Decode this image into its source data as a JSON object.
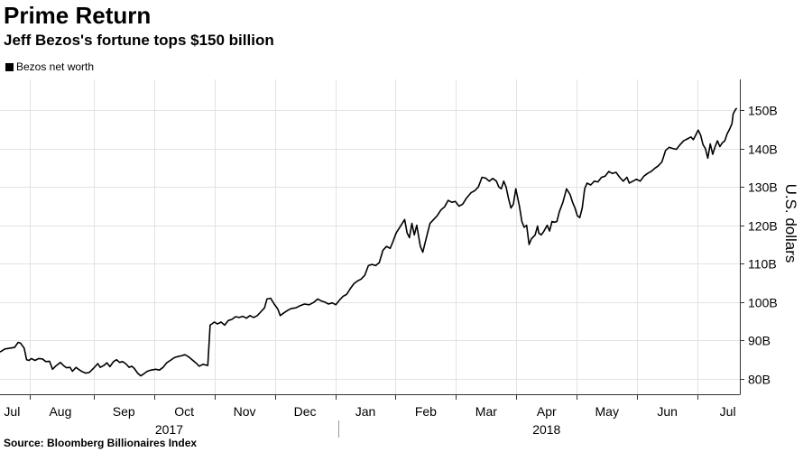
{
  "header": {
    "title": "Prime Return",
    "subtitle": "Jeff Bezos's fortune tops $150 billion"
  },
  "legend": {
    "label": "Bezos net worth",
    "swatch_color": "#000000"
  },
  "source": "Source: Bloomberg Billionaires Index",
  "chart_data": {
    "type": "line",
    "title": "Prime Return",
    "subtitle": "Jeff Bezos's fortune tops $150 billion",
    "xlabel": "",
    "ylabel": "U.S. dollars",
    "ylim": [
      76,
      158
    ],
    "xlim": [
      0,
      12.25
    ],
    "grid": true,
    "legend_position": "top-left",
    "y_ticks": [
      {
        "value": 80,
        "label": "80B"
      },
      {
        "value": 90,
        "label": "90B"
      },
      {
        "value": 100,
        "label": "100B"
      },
      {
        "value": 110,
        "label": "110B"
      },
      {
        "value": 120,
        "label": "120B"
      },
      {
        "value": 130,
        "label": "130B"
      },
      {
        "value": 140,
        "label": "140B"
      },
      {
        "value": 150,
        "label": "150B"
      }
    ],
    "month_ticks": [
      {
        "label": "Jul",
        "x": 0.2
      },
      {
        "label": "Aug",
        "x": 1.0
      },
      {
        "label": "Sep",
        "x": 2.05
      },
      {
        "label": "Oct",
        "x": 3.05
      },
      {
        "label": "Nov",
        "x": 4.05
      },
      {
        "label": "Dec",
        "x": 5.05
      },
      {
        "label": "Jan",
        "x": 6.05
      },
      {
        "label": "Feb",
        "x": 7.05
      },
      {
        "label": "Mar",
        "x": 8.05
      },
      {
        "label": "Apr",
        "x": 9.05
      },
      {
        "label": "May",
        "x": 10.05
      },
      {
        "label": "Jun",
        "x": 11.05
      },
      {
        "label": "Jul",
        "x": 12.05
      }
    ],
    "gridline_x": [
      0.5,
      1.55,
      2.55,
      3.55,
      4.55,
      5.55,
      6.55,
      7.55,
      8.55,
      9.55,
      10.55,
      11.55
    ],
    "year_labels": [
      {
        "label": "2017",
        "x": 2.8
      },
      {
        "label": "2018",
        "x": 9.05
      }
    ],
    "year_divider_x": 5.6,
    "series": [
      {
        "name": "Bezos net worth",
        "unit": "billion USD",
        "points": [
          [
            0.0,
            87.0
          ],
          [
            0.08,
            87.8
          ],
          [
            0.16,
            88.0
          ],
          [
            0.24,
            88.2
          ],
          [
            0.3,
            89.5
          ],
          [
            0.34,
            89.3
          ],
          [
            0.4,
            88.0
          ],
          [
            0.44,
            85.0
          ],
          [
            0.48,
            84.8
          ],
          [
            0.52,
            85.3
          ],
          [
            0.58,
            84.8
          ],
          [
            0.64,
            85.3
          ],
          [
            0.7,
            85.2
          ],
          [
            0.76,
            84.5
          ],
          [
            0.82,
            84.6
          ],
          [
            0.87,
            82.5
          ],
          [
            0.92,
            83.3
          ],
          [
            1.0,
            84.3
          ],
          [
            1.05,
            83.5
          ],
          [
            1.1,
            82.9
          ],
          [
            1.16,
            83.0
          ],
          [
            1.2,
            82.0
          ],
          [
            1.26,
            83.0
          ],
          [
            1.3,
            82.5
          ],
          [
            1.36,
            81.9
          ],
          [
            1.42,
            81.5
          ],
          [
            1.48,
            81.7
          ],
          [
            1.55,
            82.8
          ],
          [
            1.62,
            84.0
          ],
          [
            1.66,
            83.0
          ],
          [
            1.72,
            83.5
          ],
          [
            1.77,
            84.2
          ],
          [
            1.82,
            83.2
          ],
          [
            1.88,
            84.5
          ],
          [
            1.93,
            85.0
          ],
          [
            1.98,
            84.3
          ],
          [
            2.03,
            84.5
          ],
          [
            2.08,
            84.0
          ],
          [
            2.14,
            83.0
          ],
          [
            2.18,
            83.3
          ],
          [
            2.22,
            82.8
          ],
          [
            2.28,
            81.5
          ],
          [
            2.33,
            80.8
          ],
          [
            2.38,
            81.3
          ],
          [
            2.44,
            82.0
          ],
          [
            2.5,
            82.3
          ],
          [
            2.58,
            82.5
          ],
          [
            2.64,
            82.3
          ],
          [
            2.7,
            83.0
          ],
          [
            2.76,
            84.2
          ],
          [
            2.82,
            84.8
          ],
          [
            2.88,
            85.5
          ],
          [
            2.94,
            85.8
          ],
          [
            3.0,
            86.0
          ],
          [
            3.06,
            86.3
          ],
          [
            3.12,
            85.8
          ],
          [
            3.18,
            85.0
          ],
          [
            3.24,
            84.2
          ],
          [
            3.3,
            83.3
          ],
          [
            3.36,
            83.8
          ],
          [
            3.44,
            83.5
          ],
          [
            3.48,
            94.0
          ],
          [
            3.55,
            94.8
          ],
          [
            3.6,
            94.3
          ],
          [
            3.66,
            94.8
          ],
          [
            3.72,
            94.0
          ],
          [
            3.78,
            95.2
          ],
          [
            3.84,
            95.5
          ],
          [
            3.9,
            96.2
          ],
          [
            3.96,
            96.0
          ],
          [
            4.02,
            96.3
          ],
          [
            4.08,
            95.8
          ],
          [
            4.14,
            96.5
          ],
          [
            4.2,
            96.0
          ],
          [
            4.26,
            96.5
          ],
          [
            4.32,
            97.5
          ],
          [
            4.38,
            98.5
          ],
          [
            4.42,
            100.8
          ],
          [
            4.48,
            101.0
          ],
          [
            4.54,
            99.5
          ],
          [
            4.6,
            98.2
          ],
          [
            4.64,
            96.5
          ],
          [
            4.7,
            97.2
          ],
          [
            4.76,
            97.8
          ],
          [
            4.82,
            98.3
          ],
          [
            4.9,
            98.5
          ],
          [
            4.96,
            99.0
          ],
          [
            5.04,
            99.5
          ],
          [
            5.12,
            99.3
          ],
          [
            5.2,
            100.0
          ],
          [
            5.26,
            100.8
          ],
          [
            5.32,
            100.3
          ],
          [
            5.38,
            100.0
          ],
          [
            5.44,
            99.5
          ],
          [
            5.5,
            99.8
          ],
          [
            5.56,
            99.3
          ],
          [
            5.62,
            100.5
          ],
          [
            5.68,
            101.5
          ],
          [
            5.74,
            102.0
          ],
          [
            5.8,
            103.5
          ],
          [
            5.86,
            104.8
          ],
          [
            5.92,
            105.5
          ],
          [
            5.98,
            106.0
          ],
          [
            6.04,
            107.0
          ],
          [
            6.1,
            109.5
          ],
          [
            6.16,
            109.8
          ],
          [
            6.22,
            109.5
          ],
          [
            6.28,
            110.3
          ],
          [
            6.34,
            113.5
          ],
          [
            6.4,
            114.5
          ],
          [
            6.46,
            114.0
          ],
          [
            6.5,
            115.5
          ],
          [
            6.56,
            118.0
          ],
          [
            6.62,
            119.5
          ],
          [
            6.7,
            121.5
          ],
          [
            6.74,
            118.0
          ],
          [
            6.78,
            116.8
          ],
          [
            6.82,
            120.5
          ],
          [
            6.86,
            117.5
          ],
          [
            6.9,
            120.0
          ],
          [
            6.96,
            114.5
          ],
          [
            7.0,
            113.0
          ],
          [
            7.04,
            115.5
          ],
          [
            7.08,
            118.0
          ],
          [
            7.12,
            120.5
          ],
          [
            7.18,
            121.5
          ],
          [
            7.24,
            122.5
          ],
          [
            7.3,
            124.0
          ],
          [
            7.36,
            124.8
          ],
          [
            7.42,
            126.5
          ],
          [
            7.48,
            126.0
          ],
          [
            7.54,
            126.2
          ],
          [
            7.6,
            125.0
          ],
          [
            7.66,
            125.5
          ],
          [
            7.72,
            127.0
          ],
          [
            7.8,
            128.5
          ],
          [
            7.86,
            129.0
          ],
          [
            7.92,
            130.0
          ],
          [
            7.98,
            132.5
          ],
          [
            8.04,
            132.3
          ],
          [
            8.1,
            131.5
          ],
          [
            8.16,
            132.2
          ],
          [
            8.22,
            131.5
          ],
          [
            8.26,
            130.0
          ],
          [
            8.3,
            129.5
          ],
          [
            8.34,
            131.5
          ],
          [
            8.38,
            130.0
          ],
          [
            8.42,
            127.0
          ],
          [
            8.46,
            124.5
          ],
          [
            8.5,
            125.5
          ],
          [
            8.54,
            129.5
          ],
          [
            8.6,
            125.0
          ],
          [
            8.64,
            121.0
          ],
          [
            8.68,
            119.5
          ],
          [
            8.72,
            120.0
          ],
          [
            8.76,
            115.0
          ],
          [
            8.8,
            116.5
          ],
          [
            8.86,
            117.5
          ],
          [
            8.9,
            119.8
          ],
          [
            8.92,
            118.0
          ],
          [
            8.96,
            117.5
          ],
          [
            9.0,
            118.3
          ],
          [
            9.06,
            120.0
          ],
          [
            9.1,
            118.5
          ],
          [
            9.14,
            121.0
          ],
          [
            9.18,
            120.8
          ],
          [
            9.22,
            121.0
          ],
          [
            9.26,
            123.5
          ],
          [
            9.32,
            126.0
          ],
          [
            9.38,
            129.5
          ],
          [
            9.44,
            128.0
          ],
          [
            9.48,
            126.0
          ],
          [
            9.52,
            124.5
          ],
          [
            9.56,
            122.5
          ],
          [
            9.6,
            122.0
          ],
          [
            9.64,
            124.5
          ],
          [
            9.68,
            129.5
          ],
          [
            9.72,
            131.0
          ],
          [
            9.78,
            130.5
          ],
          [
            9.84,
            131.5
          ],
          [
            9.9,
            131.3
          ],
          [
            9.96,
            132.5
          ],
          [
            10.02,
            132.8
          ],
          [
            10.08,
            134.0
          ],
          [
            10.14,
            133.5
          ],
          [
            10.2,
            133.8
          ],
          [
            10.26,
            132.5
          ],
          [
            10.32,
            131.5
          ],
          [
            10.38,
            132.5
          ],
          [
            10.42,
            131.0
          ],
          [
            10.48,
            131.5
          ],
          [
            10.54,
            132.0
          ],
          [
            10.6,
            131.5
          ],
          [
            10.66,
            132.8
          ],
          [
            10.72,
            133.5
          ],
          [
            10.78,
            134.0
          ],
          [
            10.84,
            134.8
          ],
          [
            10.9,
            135.5
          ],
          [
            10.96,
            136.5
          ],
          [
            11.02,
            139.5
          ],
          [
            11.08,
            140.3
          ],
          [
            11.14,
            140.0
          ],
          [
            11.2,
            139.8
          ],
          [
            11.26,
            141.0
          ],
          [
            11.32,
            142.0
          ],
          [
            11.38,
            142.5
          ],
          [
            11.44,
            143.0
          ],
          [
            11.48,
            142.3
          ],
          [
            11.52,
            143.5
          ],
          [
            11.56,
            144.8
          ],
          [
            11.6,
            143.5
          ],
          [
            11.64,
            141.0
          ],
          [
            11.68,
            140.0
          ],
          [
            11.72,
            137.5
          ],
          [
            11.76,
            141.2
          ],
          [
            11.8,
            138.5
          ],
          [
            11.84,
            140.5
          ],
          [
            11.88,
            142.0
          ],
          [
            11.92,
            140.5
          ],
          [
            11.96,
            141.5
          ],
          [
            12.0,
            142.0
          ],
          [
            12.04,
            143.8
          ],
          [
            12.08,
            145.0
          ],
          [
            12.12,
            146.5
          ],
          [
            12.14,
            149.0
          ],
          [
            12.18,
            150.2
          ],
          [
            12.2,
            150.5
          ]
        ]
      }
    ]
  }
}
